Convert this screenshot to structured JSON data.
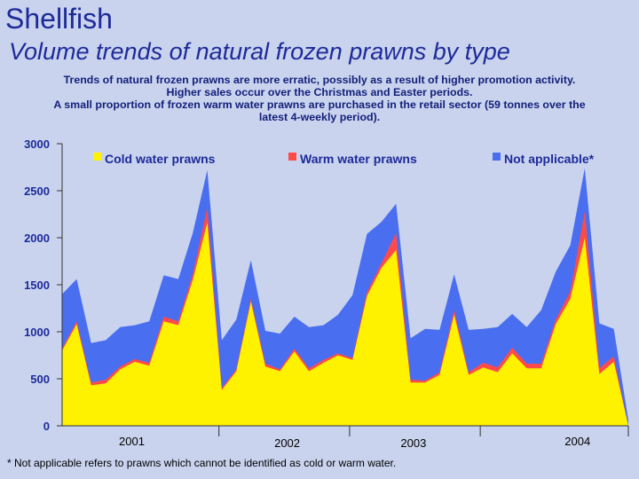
{
  "header": {
    "title": "Shellfish",
    "subtitle": "Volume trends of natural frozen prawns by type"
  },
  "description": {
    "line1": "Trends of natural frozen prawns are more erratic, possibly as a result of higher promotion activity.",
    "line2": "Higher sales occur over the Christmas and Easter periods.",
    "line3": "A small proportion of frozen warm water prawns are purchased in the retail sector (59 tonnes over the",
    "line4": "latest 4-weekly period)."
  },
  "footnote": "* Not applicable refers to prawns which cannot be identified as cold or warm water.",
  "colors": {
    "cold": "#fff200",
    "warm": "#ff4a4a",
    "na": "#4a6ef0",
    "background": "#c9d3ee"
  },
  "chart_data": {
    "type": "area",
    "stacked": true,
    "ylim": [
      0,
      3000
    ],
    "yticks": [
      0,
      500,
      1000,
      1500,
      2000,
      2500,
      3000
    ],
    "ytick_labels": [
      "0",
      "500",
      "1000",
      "1500",
      "2000",
      "2500",
      "3000"
    ],
    "x_year_labels": [
      "2001",
      "2002",
      "2003",
      "2004"
    ],
    "legend_position": "top",
    "series": [
      {
        "name": "Cold water prawns",
        "color": "#fff200",
        "values": [
          800,
          1080,
          430,
          450,
          600,
          680,
          640,
          1110,
          1070,
          1550,
          2160,
          380,
          580,
          1320,
          630,
          580,
          790,
          580,
          670,
          750,
          700,
          1380,
          1680,
          1870,
          460,
          460,
          540,
          1180,
          540,
          620,
          570,
          770,
          610,
          610,
          1080,
          1350,
          2000,
          550,
          680,
          0
        ]
      },
      {
        "name": "Warm water prawns",
        "color": "#ff4a4a",
        "values": [
          20,
          30,
          30,
          40,
          30,
          30,
          30,
          50,
          40,
          60,
          160,
          20,
          20,
          30,
          30,
          20,
          30,
          30,
          30,
          20,
          20,
          40,
          50,
          180,
          30,
          20,
          30,
          50,
          30,
          50,
          50,
          60,
          50,
          50,
          50,
          80,
          280,
          60,
          60,
          0
        ]
      },
      {
        "name": "Not applicable*",
        "color": "#4a6ef0",
        "values": [
          580,
          450,
          420,
          420,
          420,
          360,
          440,
          440,
          450,
          440,
          400,
          510,
          530,
          410,
          350,
          380,
          340,
          440,
          370,
          410,
          670,
          620,
          440,
          310,
          440,
          550,
          450,
          380,
          450,
          360,
          430,
          360,
          390,
          570,
          510,
          490,
          460,
          480,
          290,
          60
        ]
      }
    ]
  }
}
